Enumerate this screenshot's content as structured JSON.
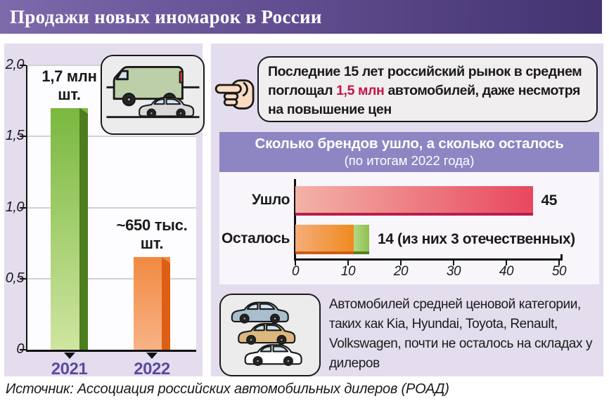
{
  "title": "Продажи новых иномарок в России",
  "source": "Источник: Ассоциация российских автомобильных дилеров (РОАД)",
  "callout": {
    "pre": "Последние 15 лет российский рынок в среднем поглощал ",
    "highlight": "1,5 млн",
    "post": " автомобилей, даже несмотря на повышение цен"
  },
  "note": {
    "text": "Автомобилей средней ценовой категории, таких как Kia, Hyundai, Toyota, Renault, Volkswagen, почти не осталось на складах у дилеров"
  },
  "icons": {
    "hand": "pointing-hand-left-icon",
    "van_box": "van-and-car-icon",
    "cars_box": "three-stacked-cars-icon"
  },
  "colors": {
    "title_gradient": [
      "#7d6aab",
      "#433370"
    ],
    "panel_bg": "#e4ddee",
    "banner_bg": "#8d86c3",
    "highlight_red": "#c01648",
    "year_label_purple": "#5b4aa0"
  },
  "chart_data": [
    {
      "type": "bar",
      "name": "new-foreign-car-sales",
      "categories": [
        "2021",
        "2022"
      ],
      "values": [
        1.7,
        0.65
      ],
      "value_labels": [
        "1,7 млн\nшт.",
        "~650 тыс.\nшт."
      ],
      "ylim": [
        0,
        2
      ],
      "y_tick_values": [
        0,
        0.5,
        1.0,
        1.5,
        2.0
      ],
      "y_tick_labels": [
        "0",
        "0,5",
        "1,0",
        "1,5",
        "2,0"
      ],
      "grid": true,
      "bar_colors": [
        {
          "top": "#79b83f",
          "bottom": "#cfe5a0",
          "edge": "#4d7d1d"
        },
        {
          "top": "#f18a42",
          "bottom": "#f8b286",
          "edge": "#dd5f14"
        }
      ]
    },
    {
      "type": "bar-horizontal",
      "name": "brands-left-vs-remaining",
      "title": "Сколько брендов ушло, а сколько осталось",
      "subtitle": "(по итогам 2022 года)",
      "rows": [
        {
          "label": "Ушло",
          "total": 45,
          "value_label": "45",
          "segments": [
            {
              "value": 45,
              "from": "#f3b3a7",
              "to": "#e8485f",
              "edge": "#b71e4c"
            }
          ]
        },
        {
          "label": "Осталось",
          "total": 14,
          "value_label": "14 (из них 3 отечественных)",
          "segments": [
            {
              "value": 11,
              "from": "#f5ad79",
              "to": "#ef8a1f",
              "edge": "#cc5d13"
            },
            {
              "value": 3,
              "from": "#b5d884",
              "to": "#8cc14d",
              "edge": "#557f24"
            }
          ]
        }
      ],
      "xlim": [
        0,
        50
      ],
      "x_tick_values": [
        0,
        10,
        20,
        30,
        40,
        50
      ],
      "x_tick_labels": [
        "0",
        "10",
        "20",
        "30",
        "40",
        "50"
      ]
    }
  ]
}
